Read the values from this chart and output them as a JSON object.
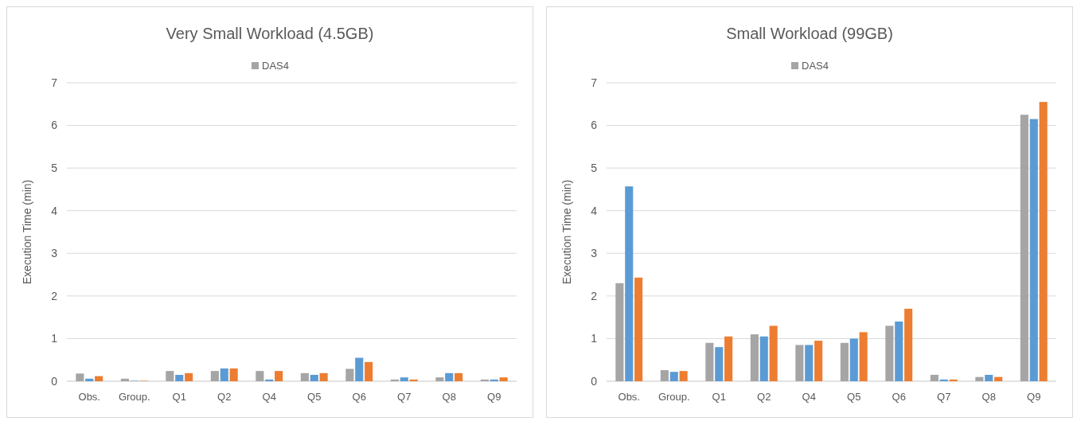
{
  "chart_data": [
    {
      "type": "bar",
      "title": "Very Small Workload (4.5GB)",
      "ylabel": "Execution Time (min)",
      "categories": [
        "Obs.",
        "Group.",
        "Q1",
        "Q2",
        "Q4",
        "Q5",
        "Q6",
        "Q7",
        "Q8",
        "Q9"
      ],
      "series": [
        {
          "name": "DAS4",
          "color": "#a5a5a5",
          "values": [
            0.18,
            0.06,
            0.24,
            0.24,
            0.24,
            0.19,
            0.29,
            0.04,
            0.09,
            0.04
          ]
        },
        {
          "color": "#5b9bd5",
          "values": [
            0.06,
            0.01,
            0.15,
            0.3,
            0.04,
            0.15,
            0.55,
            0.09,
            0.19,
            0.04
          ]
        },
        {
          "color": "#ed7d31",
          "values": [
            0.12,
            0.01,
            0.19,
            0.3,
            0.24,
            0.19,
            0.45,
            0.04,
            0.19,
            0.09
          ]
        }
      ],
      "ylim": [
        0,
        7
      ],
      "yticks": [
        0,
        1,
        2,
        3,
        4,
        5,
        6,
        7
      ],
      "grid": "y",
      "legend": "top"
    },
    {
      "type": "bar",
      "title": "Small Workload (99GB)",
      "ylabel": "Execution Time (min)",
      "categories": [
        "Obs.",
        "Group.",
        "Q1",
        "Q2",
        "Q4",
        "Q5",
        "Q6",
        "Q7",
        "Q8",
        "Q9"
      ],
      "series": [
        {
          "name": "DAS4",
          "color": "#a5a5a5",
          "values": [
            2.3,
            0.26,
            0.9,
            1.1,
            0.85,
            0.9,
            1.3,
            0.15,
            0.1,
            6.25
          ]
        },
        {
          "color": "#5b9bd5",
          "values": [
            4.57,
            0.22,
            0.8,
            1.05,
            0.85,
            1.0,
            1.4,
            0.04,
            0.15,
            6.15
          ]
        },
        {
          "color": "#ed7d31",
          "values": [
            2.43,
            0.24,
            1.05,
            1.3,
            0.95,
            1.15,
            1.7,
            0.04,
            0.1,
            6.55
          ]
        }
      ],
      "ylim": [
        0,
        7
      ],
      "yticks": [
        0,
        1,
        2,
        3,
        4,
        5,
        6,
        7
      ],
      "grid": "y",
      "legend": "top"
    }
  ]
}
